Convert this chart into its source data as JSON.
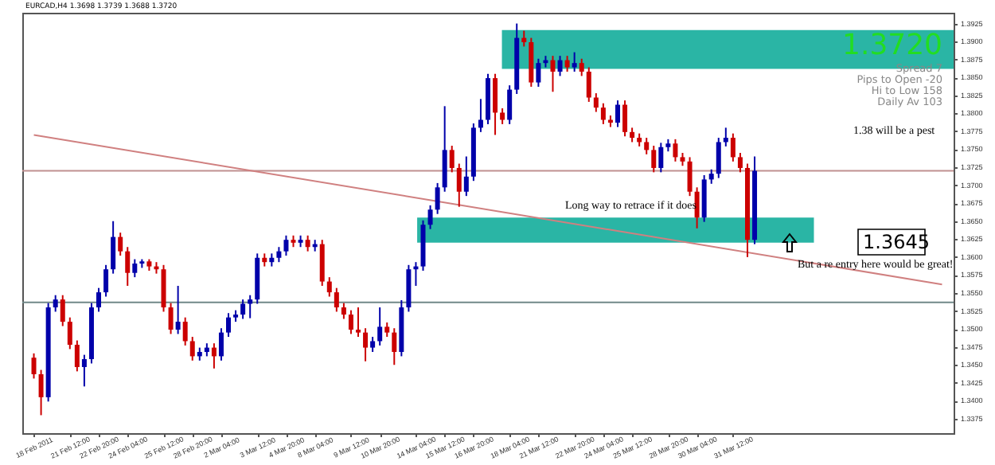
{
  "chart_data": {
    "type": "candlestick",
    "title": "EURCAD,H4 1.3698 1.3739 1.3688 1.3720",
    "categories": [
      "18 Feb 2011",
      null,
      null,
      null,
      null,
      "21 Feb 12:00",
      null,
      null,
      null,
      "22 Feb 20:00",
      null,
      null,
      null,
      "24 Feb 04:00",
      null,
      null,
      null,
      null,
      "25 Feb 12:00",
      null,
      null,
      null,
      "28 Feb 20:00",
      null,
      null,
      null,
      "2 Mar 04:00",
      null,
      null,
      null,
      null,
      "3 Mar 12:00",
      null,
      null,
      null,
      "4 Mar 20:00",
      null,
      null,
      null,
      "8 Mar 04:00",
      null,
      null,
      null,
      null,
      "9 Mar 12:00",
      null,
      null,
      null,
      "10 Mar 20:00",
      null,
      null,
      null,
      null,
      "14 Mar 04:00",
      null,
      null,
      null,
      "15 Mar 12:00",
      null,
      null,
      null,
      "16 Mar 20:00",
      null,
      null,
      null,
      null,
      "18 Mar 04:00",
      null,
      null,
      null,
      "21 Mar 12:00",
      null,
      null,
      null,
      null,
      "22 Mar 20:00",
      null,
      null,
      null,
      "24 Mar 04:00",
      null,
      null,
      null,
      "25 Mar 12:00",
      null,
      null,
      null,
      null,
      "28 Mar 20:00",
      null,
      null,
      null,
      "30 Mar 04:00",
      null,
      null,
      null,
      null,
      "31 Mar 12:00",
      null,
      null,
      null,
      null,
      null,
      null,
      null,
      null,
      null,
      null,
      null,
      null,
      null,
      null,
      null,
      null,
      null,
      null,
      null,
      null,
      null,
      null,
      null,
      null,
      null,
      null,
      null,
      null,
      null
    ],
    "ohlc": [
      [
        1.346,
        1.3466,
        1.3431,
        1.3437
      ],
      [
        1.3437,
        1.3443,
        1.338,
        1.3405
      ],
      [
        1.3405,
        1.3536,
        1.3399,
        1.353
      ],
      [
        1.353,
        1.3547,
        1.3524,
        1.3541
      ],
      [
        1.3541,
        1.3547,
        1.3504,
        1.351
      ],
      [
        1.351,
        1.3516,
        1.3472,
        1.3478
      ],
      [
        1.3478,
        1.3484,
        1.3441,
        1.3447
      ],
      [
        1.3447,
        1.3464,
        1.342,
        1.3458
      ],
      [
        1.3458,
        1.3536,
        1.3452,
        1.353
      ],
      [
        1.353,
        1.3557,
        1.3524,
        1.3551
      ],
      [
        1.3551,
        1.3589,
        1.3545,
        1.3583
      ],
      [
        1.3583,
        1.365,
        1.3577,
        1.3628
      ],
      [
        1.3628,
        1.3634,
        1.3602,
        1.3608
      ],
      [
        1.3608,
        1.3614,
        1.356,
        1.3578
      ],
      [
        1.3578,
        1.3597,
        1.3572,
        1.3591
      ],
      [
        1.3591,
        1.3597,
        1.3585,
        1.3594
      ],
      [
        1.3594,
        1.3597,
        1.3581,
        1.3587
      ],
      [
        1.3587,
        1.3593,
        1.3577,
        1.3583
      ],
      [
        1.3583,
        1.3589,
        1.3524,
        1.353
      ],
      [
        1.353,
        1.3536,
        1.3493,
        1.3499
      ],
      [
        1.3499,
        1.356,
        1.3493,
        1.351
      ],
      [
        1.351,
        1.3516,
        1.3477,
        1.3483
      ],
      [
        1.3483,
        1.3489,
        1.3456,
        1.3462
      ],
      [
        1.3462,
        1.3474,
        1.3456,
        1.3468
      ],
      [
        1.3468,
        1.348,
        1.3462,
        1.3474
      ],
      [
        1.3474,
        1.348,
        1.3445,
        1.3462
      ],
      [
        1.3462,
        1.3501,
        1.3456,
        1.3495
      ],
      [
        1.3495,
        1.3522,
        1.3489,
        1.3516
      ],
      [
        1.3516,
        1.3526,
        1.351,
        1.352
      ],
      [
        1.352,
        1.3541,
        1.3514,
        1.3535
      ],
      [
        1.3535,
        1.3547,
        1.3515,
        1.3541
      ],
      [
        1.3541,
        1.3605,
        1.3535,
        1.3599
      ],
      [
        1.3599,
        1.3605,
        1.3587,
        1.3593
      ],
      [
        1.3593,
        1.3605,
        1.3587,
        1.3599
      ],
      [
        1.3599,
        1.3614,
        1.3593,
        1.3608
      ],
      [
        1.3608,
        1.363,
        1.3602,
        1.3624
      ],
      [
        1.3624,
        1.363,
        1.3614,
        1.362
      ],
      [
        1.362,
        1.363,
        1.3614,
        1.3624
      ],
      [
        1.3624,
        1.363,
        1.3608,
        1.3614
      ],
      [
        1.3614,
        1.3624,
        1.3608,
        1.3618
      ],
      [
        1.3618,
        1.3624,
        1.356,
        1.3566
      ],
      [
        1.3566,
        1.3572,
        1.3545,
        1.3551
      ],
      [
        1.3551,
        1.3557,
        1.3524,
        1.353
      ],
      [
        1.353,
        1.3536,
        1.3514,
        1.352
      ],
      [
        1.352,
        1.3526,
        1.3493,
        1.3499
      ],
      [
        1.3499,
        1.353,
        1.3489,
        1.3495
      ],
      [
        1.3495,
        1.3501,
        1.3455,
        1.3474
      ],
      [
        1.3474,
        1.3489,
        1.3468,
        1.3483
      ],
      [
        1.3483,
        1.353,
        1.3477,
        1.3503
      ],
      [
        1.3503,
        1.3509,
        1.3489,
        1.3495
      ],
      [
        1.3495,
        1.3501,
        1.345,
        1.3468
      ],
      [
        1.3468,
        1.354,
        1.3462,
        1.353
      ],
      [
        1.353,
        1.3589,
        1.3524,
        1.3583
      ],
      [
        1.3583,
        1.3593,
        1.356,
        1.3587
      ],
      [
        1.3587,
        1.3651,
        1.3581,
        1.3645
      ],
      [
        1.3645,
        1.3672,
        1.3639,
        1.3666
      ],
      [
        1.3666,
        1.3703,
        1.366,
        1.3697
      ],
      [
        1.3697,
        1.381,
        1.3691,
        1.3749
      ],
      [
        1.3749,
        1.3755,
        1.3718,
        1.3724
      ],
      [
        1.3724,
        1.373,
        1.367,
        1.3691
      ],
      [
        1.3691,
        1.374,
        1.3685,
        1.3712
      ],
      [
        1.3712,
        1.3786,
        1.3706,
        1.378
      ],
      [
        1.378,
        1.382,
        1.3774,
        1.3791
      ],
      [
        1.3791,
        1.3855,
        1.3785,
        1.3849
      ],
      [
        1.3849,
        1.3855,
        1.377,
        1.3801
      ],
      [
        1.3801,
        1.3807,
        1.3785,
        1.3791
      ],
      [
        1.3791,
        1.3839,
        1.3785,
        1.3833
      ],
      [
        1.3833,
        1.3925,
        1.3827,
        1.3905
      ],
      [
        1.3905,
        1.3915,
        1.3893,
        1.3899
      ],
      [
        1.3899,
        1.3905,
        1.3837,
        1.3843
      ],
      [
        1.3843,
        1.3876,
        1.3837,
        1.387
      ],
      [
        1.387,
        1.388,
        1.3864,
        1.3874
      ],
      [
        1.3874,
        1.388,
        1.383,
        1.3858
      ],
      [
        1.3858,
        1.388,
        1.3852,
        1.3874
      ],
      [
        1.3874,
        1.388,
        1.3858,
        1.3864
      ],
      [
        1.3864,
        1.3885,
        1.3858,
        1.387
      ],
      [
        1.387,
        1.3876,
        1.3852,
        1.3858
      ],
      [
        1.3858,
        1.3864,
        1.3816,
        1.3822
      ],
      [
        1.3822,
        1.3828,
        1.3802,
        1.3808
      ],
      [
        1.3808,
        1.3814,
        1.3785,
        1.3791
      ],
      [
        1.3791,
        1.3797,
        1.3781,
        1.3787
      ],
      [
        1.3787,
        1.3818,
        1.3781,
        1.3812
      ],
      [
        1.3812,
        1.3818,
        1.3768,
        1.3774
      ],
      [
        1.3774,
        1.378,
        1.376,
        1.3766
      ],
      [
        1.3766,
        1.3772,
        1.3754,
        1.376
      ],
      [
        1.376,
        1.3766,
        1.3743,
        1.3749
      ],
      [
        1.3749,
        1.3755,
        1.3718,
        1.3724
      ],
      [
        1.3724,
        1.3759,
        1.3718,
        1.3753
      ],
      [
        1.3753,
        1.3764,
        1.3747,
        1.3758
      ],
      [
        1.3758,
        1.3764,
        1.3733,
        1.3739
      ],
      [
        1.3739,
        1.3745,
        1.3727,
        1.3733
      ],
      [
        1.3733,
        1.3739,
        1.3685,
        1.3691
      ],
      [
        1.3691,
        1.3697,
        1.364,
        1.3655
      ],
      [
        1.3655,
        1.3714,
        1.3649,
        1.3708
      ],
      [
        1.3708,
        1.3722,
        1.3702,
        1.3716
      ],
      [
        1.3716,
        1.3766,
        1.371,
        1.376
      ],
      [
        1.376,
        1.378,
        1.3754,
        1.3766
      ],
      [
        1.3766,
        1.3772,
        1.3733,
        1.3739
      ],
      [
        1.3739,
        1.3745,
        1.3718,
        1.3724
      ],
      [
        1.3724,
        1.373,
        1.36,
        1.3624
      ],
      [
        1.3624,
        1.374,
        1.3618,
        1.372
      ],
      null,
      null,
      null,
      null,
      null,
      null,
      null,
      null,
      null,
      null,
      null,
      null,
      null,
      null,
      null,
      null,
      null,
      null,
      null,
      null,
      null,
      null,
      null,
      null,
      null,
      null
    ],
    "colors": [
      "#cc0000",
      "#cc0000",
      "#0000aa",
      "#0000aa",
      "#cc0000",
      "#cc0000",
      "#cc0000",
      "#0000aa",
      "#0000aa",
      "#0000aa",
      "#0000aa",
      "#0000aa",
      "#cc0000",
      "#cc0000",
      "#0000aa",
      "#0000aa",
      "#cc0000",
      "#cc0000",
      "#cc0000",
      "#cc0000",
      "#0000aa",
      "#cc0000",
      "#cc0000",
      "#0000aa",
      "#0000aa",
      "#cc0000",
      "#0000aa",
      "#0000aa",
      "#0000aa",
      "#0000aa",
      "#0000aa",
      "#0000aa",
      "#cc0000",
      "#0000aa",
      "#0000aa",
      "#0000aa",
      "#cc0000",
      "#0000aa",
      "#cc0000",
      "#0000aa",
      "#cc0000",
      "#cc0000",
      "#cc0000",
      "#cc0000",
      "#cc0000",
      "#cc0000",
      "#cc0000",
      "#0000aa",
      "#0000aa",
      "#cc0000",
      "#cc0000",
      "#0000aa",
      "#0000aa",
      "#0000aa",
      "#0000aa",
      "#0000aa",
      "#0000aa",
      "#0000aa",
      "#cc0000",
      "#cc0000",
      "#0000aa",
      "#0000aa",
      "#0000aa",
      "#0000aa",
      "#cc0000",
      "#cc0000",
      "#0000aa",
      "#0000aa",
      "#cc0000",
      "#cc0000",
      "#0000aa",
      "#0000aa",
      "#cc0000",
      "#0000aa",
      "#cc0000",
      "#0000aa",
      "#cc0000",
      "#cc0000",
      "#cc0000",
      "#cc0000",
      "#cc0000",
      "#0000aa",
      "#cc0000",
      "#cc0000",
      "#cc0000",
      "#cc0000",
      "#cc0000",
      "#0000aa",
      "#0000aa",
      "#cc0000",
      "#cc0000",
      "#cc0000",
      "#cc0000",
      "#0000aa",
      "#0000aa",
      "#0000aa",
      "#0000aa",
      "#cc0000",
      "#cc0000",
      "#cc0000",
      "#0000aa",
      null,
      null,
      null,
      null,
      null,
      null,
      null,
      null,
      null,
      null,
      null,
      null,
      null,
      null,
      null,
      null,
      null,
      null,
      null,
      null,
      null,
      null,
      null,
      null,
      null,
      null
    ],
    "series": [
      {
        "type": "line",
        "color": "#d08080",
        "values": [
          1.377,
          null,
          null,
          null,
          null,
          null,
          null,
          null,
          null,
          null,
          null,
          null,
          null,
          null,
          null,
          null,
          null,
          null,
          null,
          null,
          null,
          null,
          null,
          null,
          null,
          null,
          null,
          null,
          null,
          null,
          null,
          null,
          null,
          null,
          null,
          null,
          null,
          null,
          null,
          null,
          null,
          null,
          null,
          null,
          null,
          null,
          null,
          null,
          null,
          null,
          null,
          null,
          null,
          null,
          null,
          null,
          null,
          null,
          null,
          null,
          null,
          null,
          null,
          null,
          null,
          null,
          null,
          null,
          null,
          null,
          null,
          null,
          null,
          null,
          null,
          null,
          null,
          null,
          null,
          null,
          null,
          null,
          null,
          null,
          null,
          null,
          null,
          null,
          null,
          null,
          null,
          null,
          null,
          null,
          null,
          null,
          null,
          null,
          null,
          null,
          null,
          null,
          null,
          null,
          null,
          null,
          null,
          null,
          null,
          null,
          null,
          null,
          null,
          null,
          null,
          null,
          null,
          null,
          null,
          null,
          null,
          null,
          null,
          null,
          null,
          null,
          1.3562
        ]
      }
    ],
    "ylim": [
      1.3355,
      1.394
    ],
    "yticks": [
      1.3375,
      {
        "value": 1.34,
        "label": "1.3400"
      },
      1.3425,
      {
        "value": 1.345,
        "label": "1.3450"
      },
      1.3475,
      {
        "value": 1.35,
        "label": "1.3500"
      },
      1.3525,
      {
        "value": 1.355,
        "label": "1.3550"
      },
      1.3575,
      {
        "value": 1.36,
        "label": "1.3600"
      },
      1.3625,
      {
        "value": 1.365,
        "label": "1.3650"
      },
      1.3675,
      {
        "value": 1.37,
        "label": "1.3700"
      },
      1.3725,
      {
        "value": 1.375,
        "label": "1.3750"
      },
      1.3775,
      {
        "value": 1.38,
        "label": "1.3800"
      },
      1.3825,
      {
        "value": 1.385,
        "label": "1.3850"
      },
      1.3875,
      {
        "value": 1.39,
        "label": "1.3900"
      },
      1.3925
    ],
    "bands": [
      {
        "axis": "y",
        "from": 1.3862,
        "to": 1.3916,
        "color": "#2ab5a5"
      },
      {
        "axis": "y",
        "from": 1.362,
        "to": 1.3655,
        "color": "#2ab5a5"
      }
    ],
    "ref_lines": [
      {
        "axis": "y",
        "value": 1.372,
        "color": "#c09090"
      },
      {
        "axis": "y",
        "value": 1.3537,
        "color": "#708888"
      }
    ],
    "annotations": [
      "1.38 will be a pest",
      "Long way to retrace if it does",
      "But a re entry here would be great!",
      "1.3645",
      "1.3720",
      "Spread 7",
      "Pips to Open -20",
      "Hi to Low 158",
      "Daily Av 103"
    ]
  }
}
